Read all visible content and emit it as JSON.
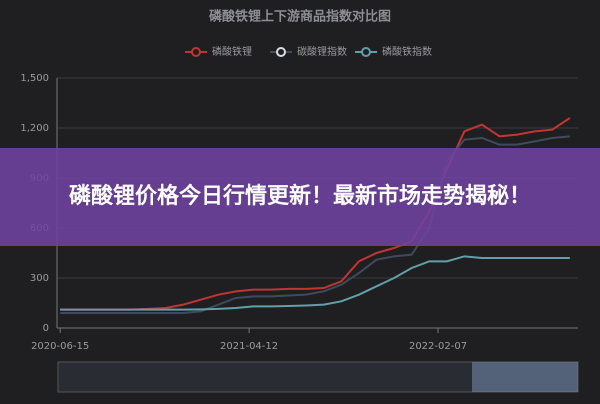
{
  "chart_data": {
    "type": "line",
    "title": "磷酸铁锂上下游商品指数对比图",
    "x": [
      "2020-06-15",
      "2020-07-13",
      "2020-08-10",
      "2020-09-07",
      "2020-10-05",
      "2020-11-02",
      "2020-11-30",
      "2020-12-28",
      "2021-01-25",
      "2021-02-22",
      "2021-03-22",
      "2021-04-19",
      "2021-05-17",
      "2021-06-14",
      "2021-07-12",
      "2021-08-09",
      "2021-09-06",
      "2021-10-04",
      "2021-11-01",
      "2021-11-29",
      "2021-12-27",
      "2022-01-24",
      "2022-02-21",
      "2022-03-21",
      "2022-04-18",
      "2022-05-16",
      "2022-06-13",
      "2022-07-11",
      "2022-08-08",
      "2022-09-05"
    ],
    "series": [
      {
        "name": "磷酸铁锂",
        "color": "#c23531",
        "values": [
          110,
          110,
          110,
          110,
          110,
          115,
          120,
          140,
          170,
          200,
          220,
          230,
          230,
          235,
          235,
          240,
          280,
          400,
          450,
          480,
          520,
          700,
          950,
          1180,
          1220,
          1150,
          1160,
          1180,
          1190,
          1260
        ]
      },
      {
        "name": "碳酸锂指数",
        "color": "#3e4b5e",
        "values": [
          90,
          90,
          90,
          90,
          90,
          90,
          90,
          90,
          100,
          140,
          180,
          190,
          190,
          195,
          200,
          220,
          260,
          330,
          410,
          430,
          440,
          600,
          1000,
          1130,
          1140,
          1100,
          1100,
          1120,
          1140,
          1150
        ]
      },
      {
        "name": "磷酸铁指数",
        "color": "#61a0a8",
        "values": [
          110,
          110,
          110,
          110,
          110,
          110,
          110,
          110,
          112,
          115,
          120,
          130,
          130,
          132,
          135,
          140,
          160,
          200,
          250,
          300,
          360,
          400,
          400,
          430,
          420,
          420,
          420,
          420,
          420,
          420
        ]
      }
    ],
    "xlim": [
      "2020-06-10",
      "2022-09-18"
    ],
    "xticks": [
      "2020-06-15",
      "2021-04-12",
      "2022-02-07"
    ],
    "ylim": [
      0,
      1500
    ],
    "yticks": [
      0,
      300,
      600,
      900,
      {
        "value": 1200,
        "label": "1,200"
      },
      {
        "value": 1500,
        "label": "1,500"
      }
    ],
    "grid": true
  },
  "banner": {
    "text": "磷酸锂价格今日行情更新！最新市场走势揭秘！"
  }
}
